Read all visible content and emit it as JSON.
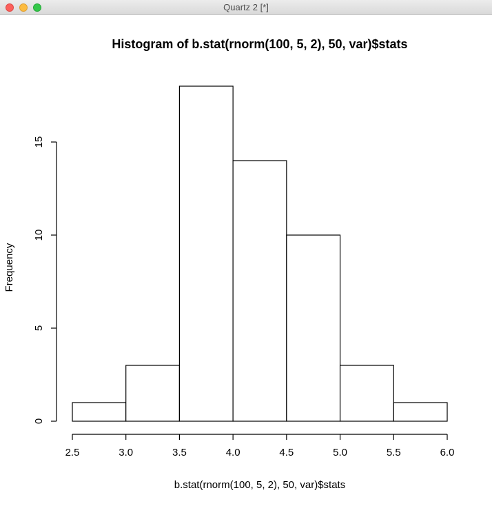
{
  "window": {
    "title": "Quartz 2 [*]"
  },
  "chart_data": {
    "type": "bar",
    "title": "Histogram of b.stat(rnorm(100, 5, 2), 50, var)$stats",
    "xlabel": "b.stat(rnorm(100, 5, 2), 50, var)$stats",
    "ylabel": "Frequency",
    "bins": [
      {
        "from": 2.5,
        "to": 3.0,
        "count": 1
      },
      {
        "from": 3.0,
        "to": 3.5,
        "count": 3
      },
      {
        "from": 3.5,
        "to": 4.0,
        "count": 18
      },
      {
        "from": 4.0,
        "to": 4.5,
        "count": 14
      },
      {
        "from": 4.5,
        "to": 5.0,
        "count": 10
      },
      {
        "from": 5.0,
        "to": 5.5,
        "count": 3
      },
      {
        "from": 5.5,
        "to": 6.0,
        "count": 1
      }
    ],
    "xlim": [
      2.5,
      6.0
    ],
    "ylim": [
      0,
      18
    ],
    "x_ticks": [
      "2.5",
      "3.0",
      "3.5",
      "4.0",
      "4.5",
      "5.0",
      "5.5",
      "6.0"
    ],
    "y_ticks": [
      "0",
      "5",
      "10",
      "15"
    ],
    "grid": false,
    "colors": {
      "bar_fill": "#ffffff",
      "bar_stroke": "#000000"
    }
  }
}
